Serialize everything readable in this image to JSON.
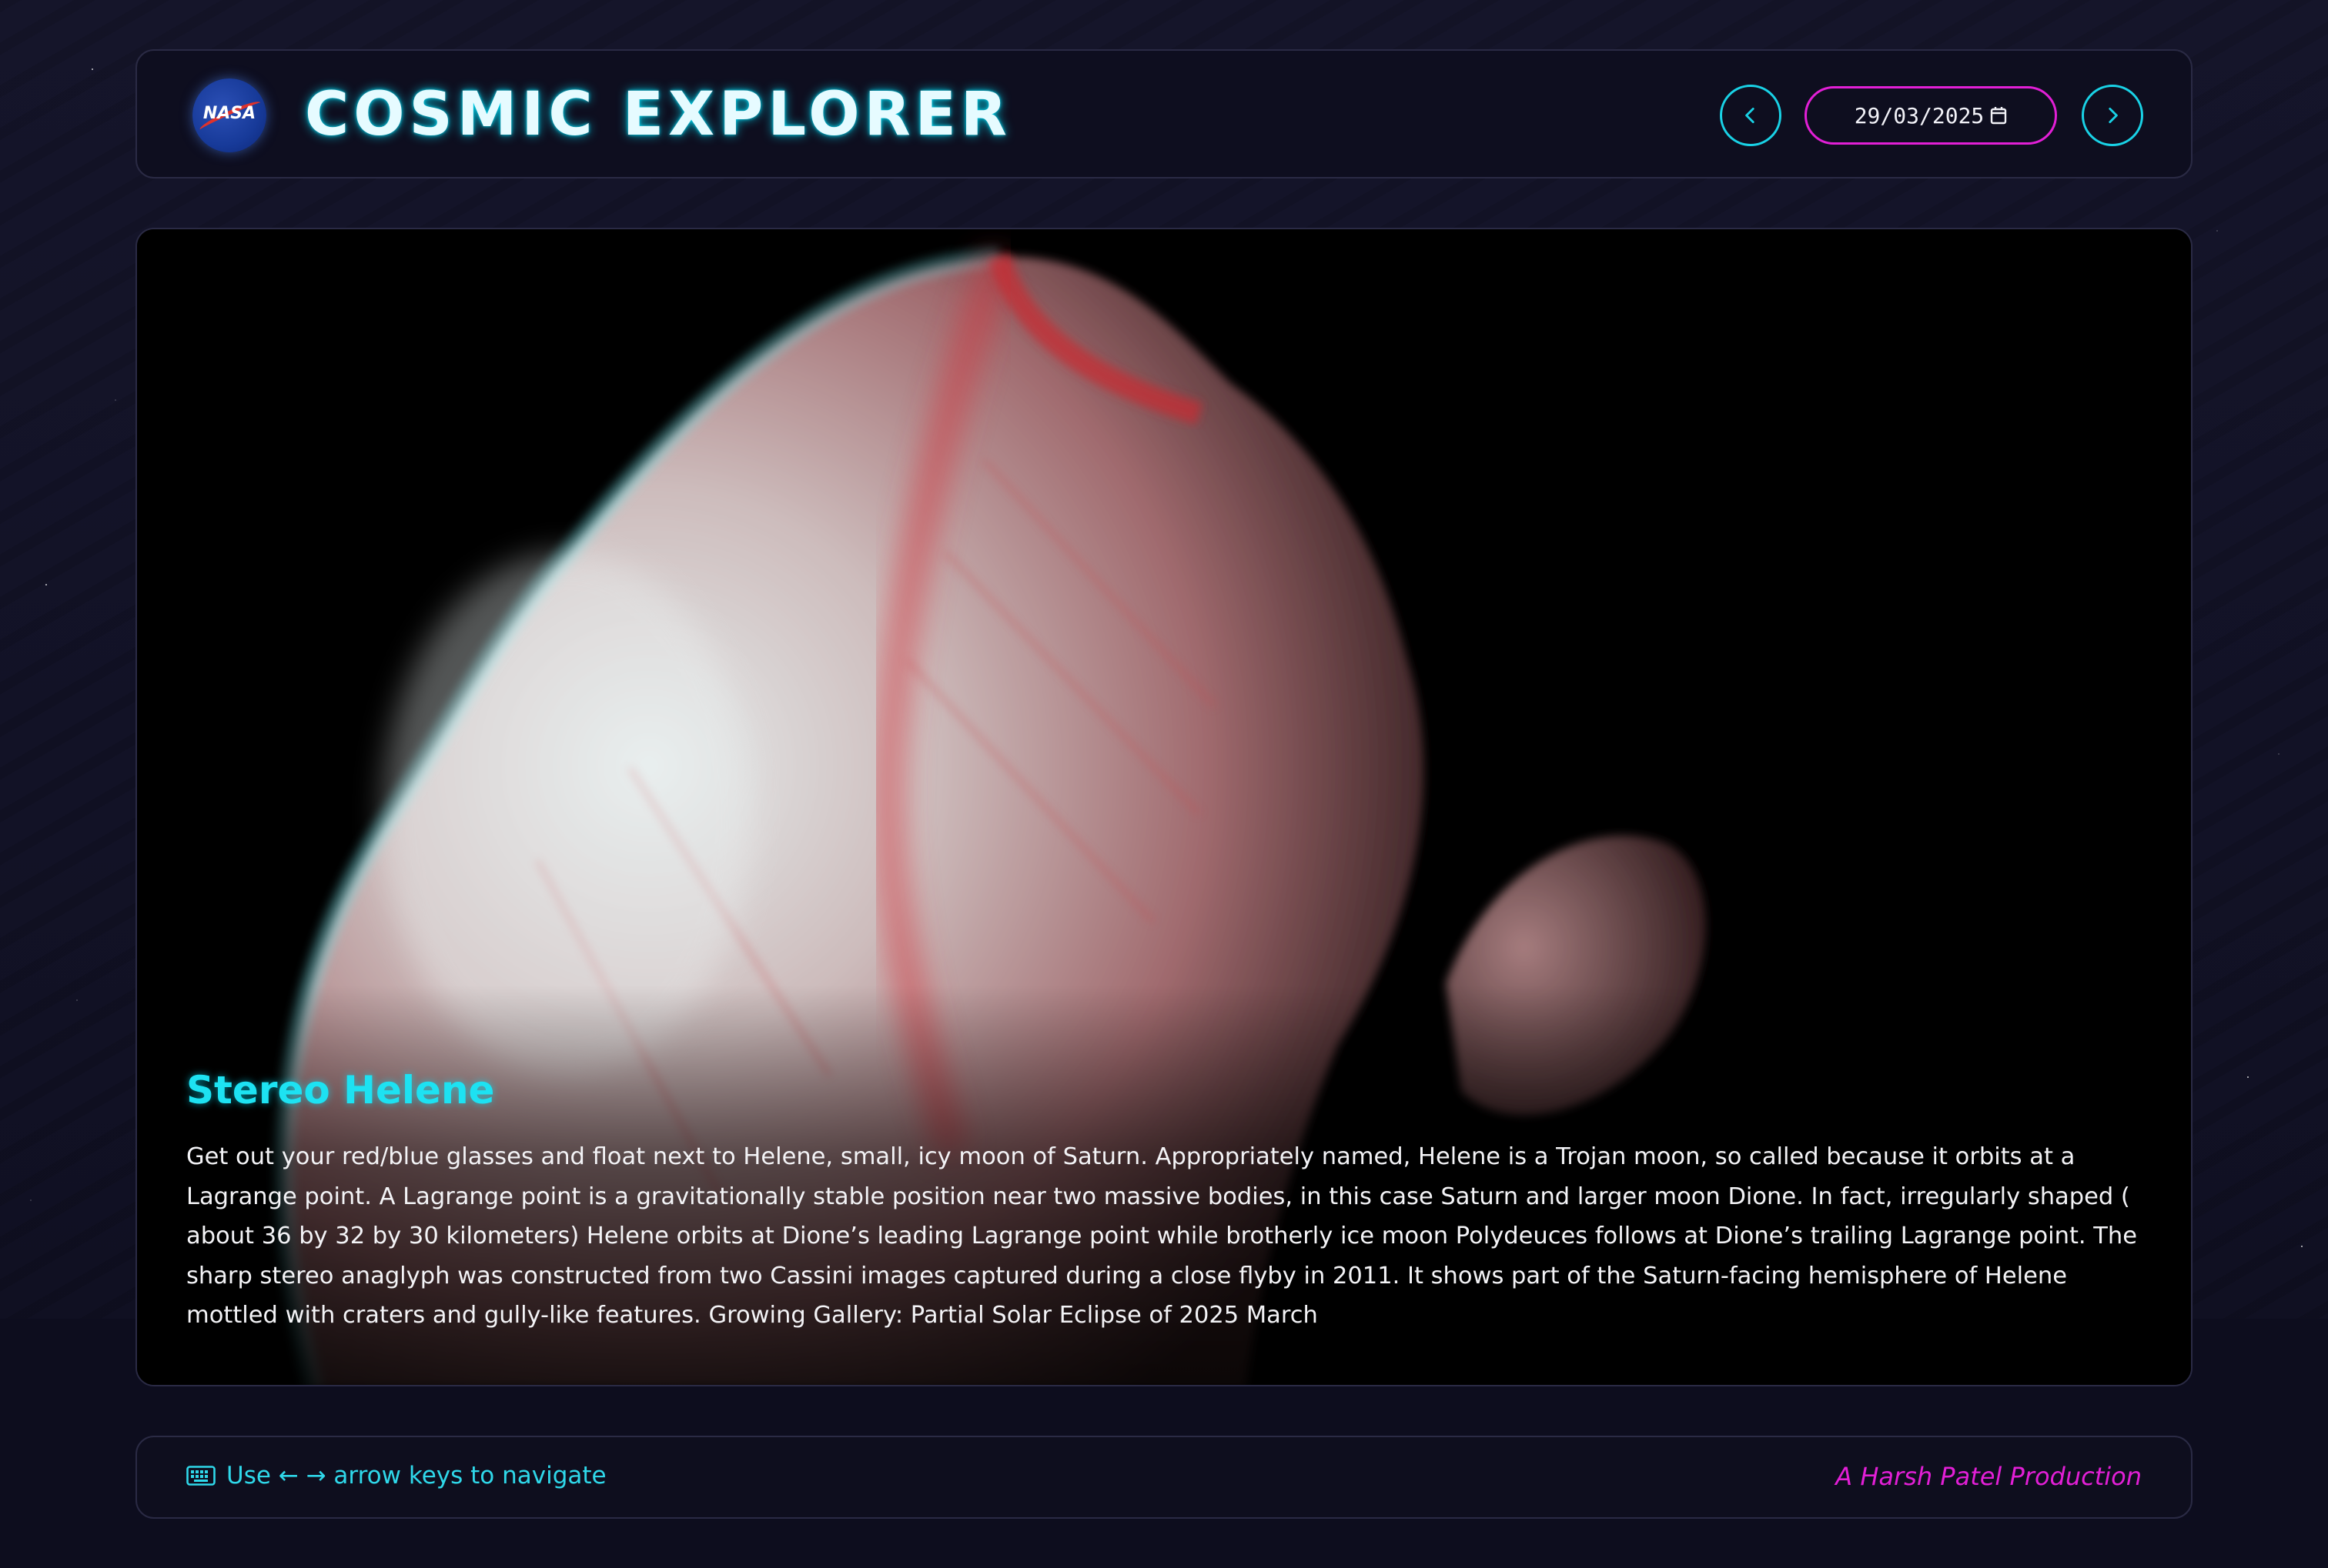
{
  "header": {
    "logo_text": "NASA",
    "title": "COSMIC EXPLORER",
    "date_value": "29/03/2025"
  },
  "apod": {
    "title": "Stereo Helene",
    "description": "Get out your red/blue glasses and float next to Helene, small, icy moon of Saturn. Appropriately named, Helene is a Trojan moon, so called because it orbits at a Lagrange point. A Lagrange point is a gravitationally stable position near two massive bodies, in this case Saturn and larger moon Dione. In fact, irregularly shaped ( about 36 by 32 by 30 kilometers) Helene orbits at Dione’s leading Lagrange point while brotherly ice moon Polydeuces follows at Dione’s trailing Lagrange point. The sharp stereo anaglyph was constructed from two Cassini images captured during a close flyby in 2011. It shows part of the Saturn-facing hemisphere of Helene mottled with craters and gully-like features. Growing Gallery: Partial Solar Eclipse of 2025 March"
  },
  "footer": {
    "hint": "Use ← → arrow keys to navigate",
    "credit": "A Harsh Patel Production"
  },
  "colors": {
    "accent_cyan": "#19d2e6",
    "accent_magenta": "#e21fd6",
    "background": "#0d0d1e"
  },
  "icons": {
    "prev": "chevron-left-icon",
    "next": "chevron-right-icon",
    "calendar": "calendar-icon",
    "keyboard": "keyboard-icon",
    "logo": "nasa-logo"
  }
}
